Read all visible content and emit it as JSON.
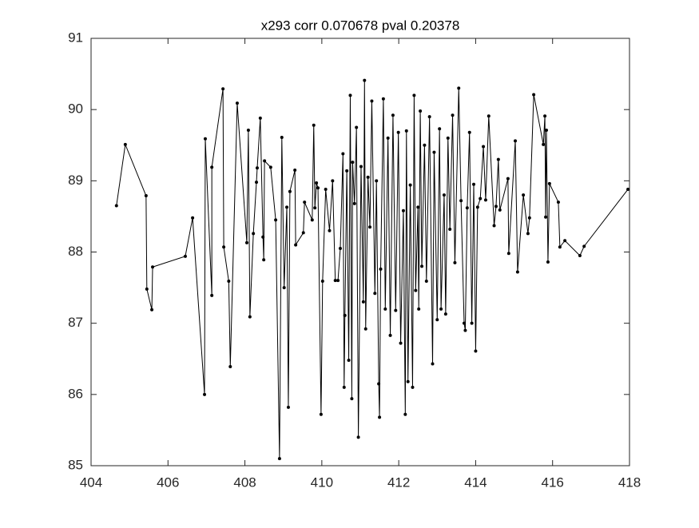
{
  "chart_data": {
    "type": "line",
    "title": "x293 corr 0.070678 pval 0.20378",
    "color": "#000000",
    "marker": true,
    "xlim": [
      404,
      418
    ],
    "xticks": [
      404,
      406,
      408,
      410,
      412,
      414,
      416,
      418
    ],
    "ylim": [
      85,
      91
    ],
    "yticks": [
      85,
      86,
      87,
      88,
      89,
      90,
      91
    ],
    "x": [
      404.66,
      404.89,
      405.43,
      405.45,
      405.58,
      405.6,
      406.45,
      406.64,
      406.95,
      406.97,
      407.14,
      407.14,
      407.43,
      407.45,
      407.58,
      407.62,
      407.8,
      408.05,
      408.09,
      408.13,
      408.22,
      408.3,
      408.32,
      408.4,
      408.47,
      408.49,
      408.51,
      408.67,
      408.8,
      408.9,
      408.96,
      409.02,
      409.09,
      409.13,
      409.17,
      409.3,
      409.32,
      409.52,
      409.55,
      409.75,
      409.79,
      409.82,
      409.86,
      409.9,
      409.98,
      410.02,
      410.1,
      410.2,
      410.28,
      410.35,
      410.42,
      410.48,
      410.55,
      410.58,
      410.6,
      410.65,
      410.7,
      410.74,
      410.78,
      410.8,
      410.85,
      410.9,
      410.95,
      411.02,
      411.08,
      411.11,
      411.14,
      411.2,
      411.25,
      411.3,
      411.38,
      411.42,
      411.48,
      411.5,
      411.53,
      411.6,
      411.65,
      411.72,
      411.78,
      411.85,
      411.92,
      411.99,
      412.05,
      412.12,
      412.17,
      412.2,
      412.24,
      412.3,
      412.36,
      412.4,
      412.44,
      412.5,
      412.52,
      412.56,
      412.6,
      412.67,
      412.72,
      412.8,
      412.88,
      412.92,
      413.0,
      413.06,
      413.1,
      413.18,
      413.22,
      413.28,
      413.33,
      413.4,
      413.46,
      413.56,
      413.62,
      413.7,
      413.73,
      413.78,
      413.84,
      413.9,
      413.95,
      414.0,
      414.05,
      414.12,
      414.2,
      414.26,
      414.34,
      414.48,
      414.53,
      414.59,
      414.63,
      414.84,
      414.86,
      415.03,
      415.09,
      415.24,
      415.36,
      415.4,
      415.51,
      415.76,
      415.8,
      415.82,
      415.84,
      415.88,
      415.92,
      416.15,
      416.19,
      416.32,
      416.71,
      416.82,
      417.96
    ],
    "values": [
      88.65,
      89.51,
      88.79,
      87.48,
      87.19,
      87.79,
      87.94,
      88.48,
      86.0,
      89.59,
      87.39,
      89.19,
      90.29,
      88.07,
      87.59,
      86.39,
      90.09,
      88.13,
      89.71,
      87.09,
      88.26,
      88.98,
      89.18,
      89.88,
      88.21,
      87.89,
      89.28,
      89.19,
      88.45,
      85.1,
      89.61,
      87.5,
      88.63,
      85.82,
      88.85,
      89.15,
      88.1,
      88.27,
      88.7,
      88.45,
      89.78,
      88.62,
      88.97,
      88.9,
      85.72,
      87.59,
      88.88,
      88.3,
      89.0,
      87.6,
      87.6,
      88.05,
      89.38,
      86.1,
      87.11,
      89.14,
      86.48,
      90.2,
      85.94,
      89.26,
      88.68,
      89.75,
      85.4,
      89.2,
      87.3,
      90.41,
      86.92,
      89.05,
      88.35,
      90.12,
      87.42,
      89.0,
      86.15,
      85.68,
      87.76,
      90.15,
      87.2,
      89.6,
      86.83,
      89.92,
      87.18,
      89.68,
      86.72,
      88.58,
      85.72,
      89.7,
      86.18,
      88.94,
      86.1,
      90.2,
      87.46,
      88.63,
      87.2,
      89.98,
      87.8,
      89.5,
      87.59,
      89.9,
      86.43,
      89.4,
      87.05,
      89.73,
      87.2,
      88.8,
      87.13,
      89.6,
      88.32,
      89.92,
      87.85,
      90.3,
      88.72,
      87.0,
      86.9,
      88.62,
      89.68,
      87.0,
      88.95,
      86.61,
      88.63,
      88.75,
      89.48,
      88.73,
      89.91,
      88.37,
      88.64,
      89.3,
      88.59,
      89.03,
      87.98,
      89.56,
      87.72,
      88.8,
      88.26,
      88.48,
      90.21,
      89.51,
      89.91,
      88.49,
      89.71,
      87.86,
      88.96,
      88.7,
      88.07,
      88.16,
      87.95,
      88.08,
      88.88
    ]
  }
}
